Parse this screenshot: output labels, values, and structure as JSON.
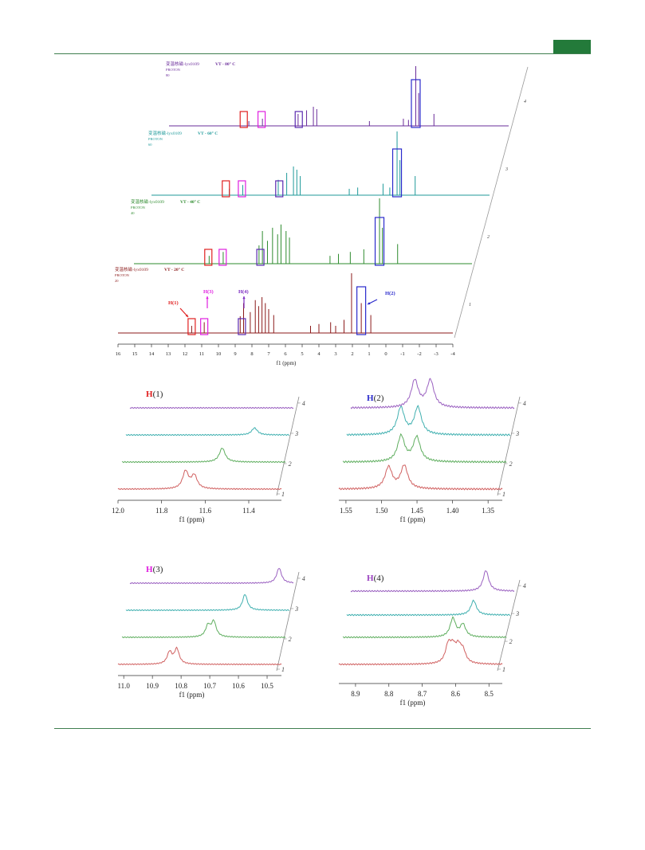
{
  "page": {
    "header_rule_color": "#3f7f4f",
    "corner_block_color": "#237a3a"
  },
  "main_chart": {
    "xlabel": "f1 (ppm)",
    "x_ticks": [
      16,
      15,
      14,
      13,
      12,
      11,
      10,
      9,
      8,
      7,
      6,
      5,
      4,
      3,
      2,
      1,
      0,
      -1,
      -2,
      -3,
      -4
    ],
    "depth_ticks": [
      "1",
      "2",
      "3",
      "4"
    ],
    "spectra": [
      {
        "label_line1": "变温核磁-lyx0109",
        "label_line2": "VT - 20° C",
        "label_line3": "PROTON",
        "label_line4": "20",
        "color": "#8b1a1a"
      },
      {
        "label_line1": "变温核磁-lyx0109",
        "label_line2": "VT - 40° C",
        "label_line3": "PROTON",
        "label_line4": "40",
        "color": "#2e8b2e"
      },
      {
        "label_line1": "变温核磁-lyx0109",
        "label_line2": "VT - 60° C",
        "label_line3": "PROTON",
        "label_line4": "60",
        "color": "#1f9a9a"
      },
      {
        "label_line1": "变温核磁-lyx0109",
        "label_line2": "VT - 80° C",
        "label_line3": "PROTON",
        "label_line4": "80",
        "color": "#6a2c9a"
      }
    ],
    "annotations": [
      {
        "label": "H(1)",
        "color": "#e02020"
      },
      {
        "label": "H(2)",
        "color": "#2a2acc"
      },
      {
        "label": "H(3)",
        "color": "#e020e0"
      },
      {
        "label": "H(4)",
        "color": "#7a2ac0"
      }
    ]
  },
  "chart_data": [
    {
      "type": "line",
      "subtitle_prefix": "H",
      "subtitle_suffix": "(1)",
      "title_color": "#e02020",
      "xlabel": "f1 (ppm)",
      "x_ticks": [
        "12.0",
        "11.8",
        "11.6",
        "11.4"
      ],
      "depth_ticks": [
        "1",
        "2",
        "3",
        "4"
      ],
      "series": [
        {
          "color": "#d06060",
          "peaks": [
            [
              11.69,
              1.0
            ],
            [
              11.65,
              0.75
            ]
          ]
        },
        {
          "color": "#5fae5f",
          "peaks": [
            [
              11.54,
              0.8
            ]
          ]
        },
        {
          "color": "#40b0b0",
          "peaks": [
            [
              11.41,
              0.4
            ]
          ]
        },
        {
          "color": "#9a60c0",
          "peaks": []
        }
      ]
    },
    {
      "type": "line",
      "subtitle_prefix": "H",
      "subtitle_suffix": "(2)",
      "title_color": "#2a2acc",
      "xlabel": "f1 (ppm)",
      "x_ticks": [
        "1.55",
        "1.50",
        "1.45",
        "1.40",
        "1.35"
      ],
      "depth_ticks": [
        "1",
        "2",
        "3",
        "4"
      ],
      "series": [
        {
          "color": "#d06060",
          "peaks": [
            [
              1.49,
              0.8
            ],
            [
              1.468,
              0.85
            ]
          ]
        },
        {
          "color": "#5fae5f",
          "peaks": [
            [
              1.478,
              0.95
            ],
            [
              1.456,
              0.9
            ]
          ]
        },
        {
          "color": "#40b0b0",
          "peaks": [
            [
              1.484,
              1.0
            ],
            [
              1.46,
              1.0
            ]
          ]
        },
        {
          "color": "#9a60c0",
          "peaks": [
            [
              1.47,
              1.0
            ],
            [
              1.448,
              1.0
            ]
          ]
        }
      ]
    },
    {
      "type": "line",
      "subtitle_prefix": "H",
      "subtitle_suffix": "(3)",
      "title_color": "#e020e0",
      "xlabel": "f1 (ppm)",
      "x_ticks": [
        "11.0",
        "10.9",
        "10.8",
        "10.7",
        "10.6",
        "10.5"
      ],
      "depth_ticks": [
        "1",
        "2",
        "3",
        "4"
      ],
      "series": [
        {
          "color": "#d06060",
          "peaks": [
            [
              10.84,
              0.75
            ],
            [
              10.815,
              0.95
            ]
          ]
        },
        {
          "color": "#5fae5f",
          "peaks": [
            [
              10.72,
              0.7
            ],
            [
              10.7,
              0.95
            ]
          ]
        },
        {
          "color": "#40b0b0",
          "peaks": [
            [
              10.605,
              1.0
            ]
          ]
        },
        {
          "color": "#9a60c0",
          "peaks": [
            [
              10.5,
              0.95
            ]
          ]
        }
      ]
    },
    {
      "type": "line",
      "subtitle_prefix": "H",
      "subtitle_suffix": "(4)",
      "title_color": "#9a40c0",
      "xlabel": "f1 (ppm)",
      "x_ticks": [
        "8.9",
        "8.8",
        "8.7",
        "8.6",
        "8.5"
      ],
      "depth_ticks": [
        "1",
        "2",
        "3",
        "4"
      ],
      "series": [
        {
          "color": "#d06060",
          "peaks": [
            [
              8.622,
              0.85
            ],
            [
              8.608,
              0.65
            ],
            [
              8.592,
              0.7
            ],
            [
              8.578,
              0.55
            ]
          ]
        },
        {
          "color": "#5fae5f",
          "peaks": [
            [
              8.62,
              0.9
            ],
            [
              8.59,
              0.6
            ]
          ]
        },
        {
          "color": "#40b0b0",
          "peaks": [
            [
              8.57,
              0.7
            ]
          ]
        },
        {
          "color": "#9a60c0",
          "peaks": [
            [
              8.545,
              1.0
            ]
          ]
        }
      ]
    }
  ]
}
